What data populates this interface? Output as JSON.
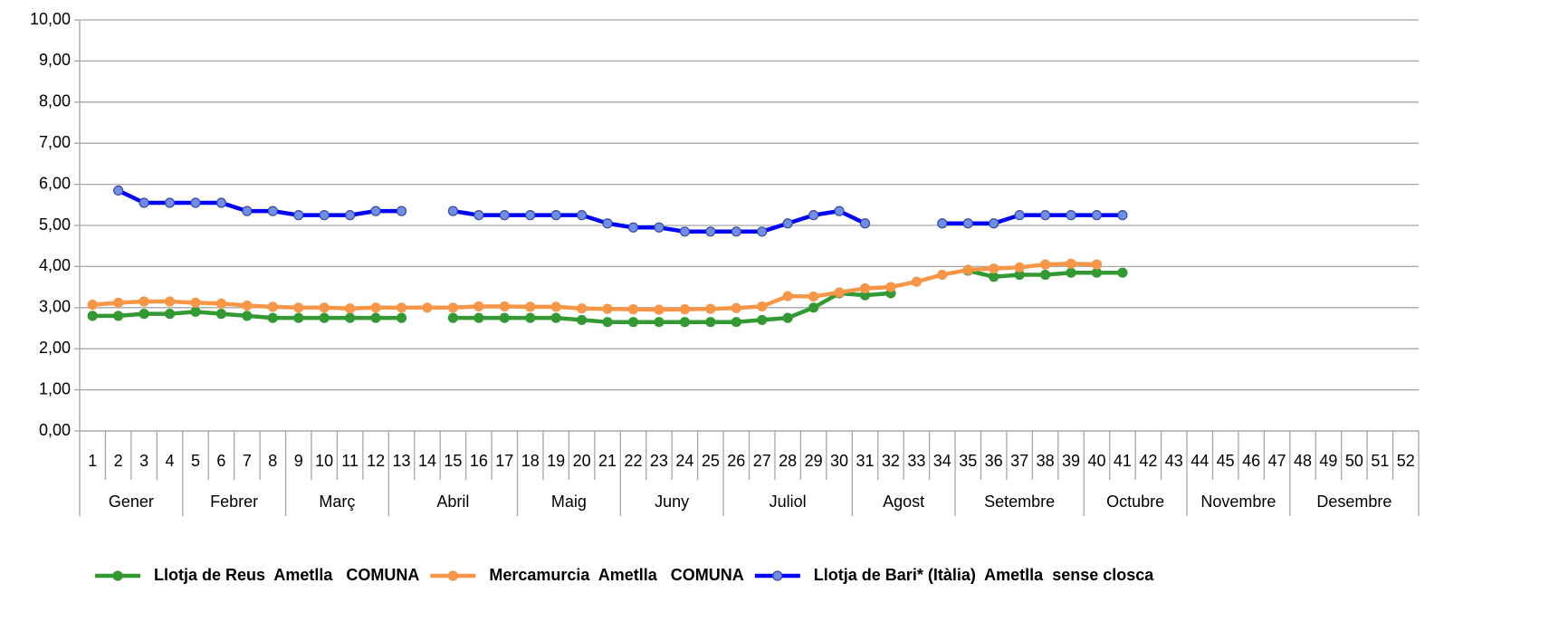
{
  "chart_data": {
    "type": "line",
    "categories": [
      "1",
      "2",
      "3",
      "4",
      "5",
      "6",
      "7",
      "8",
      "9",
      "10",
      "11",
      "12",
      "13",
      "14",
      "15",
      "16",
      "17",
      "18",
      "19",
      "20",
      "21",
      "22",
      "23",
      "24",
      "25",
      "26",
      "27",
      "28",
      "29",
      "30",
      "31",
      "32",
      "33",
      "34",
      "35",
      "36",
      "37",
      "38",
      "39",
      "40",
      "41",
      "42",
      "43",
      "44",
      "45",
      "46",
      "47",
      "48",
      "49",
      "50",
      "51",
      "52"
    ],
    "groups": [
      {
        "label": "Gener",
        "span": 4
      },
      {
        "label": "Febrer",
        "span": 4
      },
      {
        "label": "Març",
        "span": 4
      },
      {
        "label": "Abril",
        "span": 5
      },
      {
        "label": "Maig",
        "span": 4
      },
      {
        "label": "Juny",
        "span": 4
      },
      {
        "label": "Juliol",
        "span": 5
      },
      {
        "label": "Agost",
        "span": 4
      },
      {
        "label": "Setembre",
        "span": 5
      },
      {
        "label": "Octubre",
        "span": 4
      },
      {
        "label": "Novembre",
        "span": 4
      },
      {
        "label": "Desembre",
        "span": 5
      }
    ],
    "ylim": [
      0,
      10
    ],
    "yticks": [
      {
        "value": 0,
        "label": "0,00"
      },
      {
        "value": 1,
        "label": "1,00"
      },
      {
        "value": 2,
        "label": "2,00"
      },
      {
        "value": 3,
        "label": "3,00"
      },
      {
        "value": 4,
        "label": "4,00"
      },
      {
        "value": 5,
        "label": "5,00"
      },
      {
        "value": 6,
        "label": "6,00"
      },
      {
        "value": 7,
        "label": "7,00"
      },
      {
        "value": 8,
        "label": "8,00"
      },
      {
        "value": 9,
        "label": "9,00"
      },
      {
        "value": 10,
        "label": "10,00"
      }
    ],
    "grid": true,
    "legend": "bottom",
    "series": [
      {
        "name": "Llotja de Reus  Ametlla   COMUNA",
        "color": "#339933",
        "marker_color": "#339933",
        "values": [
          2.8,
          2.8,
          2.85,
          2.85,
          2.9,
          2.85,
          2.8,
          2.75,
          2.75,
          2.75,
          2.75,
          2.75,
          2.75,
          null,
          2.75,
          2.75,
          2.75,
          2.75,
          2.75,
          2.7,
          2.65,
          2.65,
          2.65,
          2.65,
          2.65,
          2.65,
          2.7,
          2.75,
          3.0,
          3.35,
          3.3,
          3.35,
          null,
          null,
          3.9,
          3.75,
          3.8,
          3.8,
          3.85,
          3.85,
          3.85,
          null,
          null,
          null,
          null,
          null,
          null,
          null,
          null,
          null,
          null,
          null
        ]
      },
      {
        "name": "Mercamurcia  Ametlla   COMUNA",
        "color": "#f79646",
        "marker_color": "#f79646",
        "values": [
          3.07,
          3.12,
          3.15,
          3.15,
          3.12,
          3.1,
          3.05,
          3.02,
          3.0,
          3.0,
          2.98,
          3.0,
          3.0,
          3.0,
          3.0,
          3.03,
          3.03,
          3.02,
          3.02,
          2.98,
          2.97,
          2.96,
          2.95,
          2.96,
          2.97,
          2.99,
          3.03,
          3.28,
          3.27,
          3.37,
          3.47,
          3.5,
          3.63,
          3.8,
          3.92,
          3.95,
          3.98,
          4.05,
          4.07,
          4.05,
          null,
          null,
          null,
          null,
          null,
          null,
          null,
          null,
          null,
          null,
          null,
          null
        ]
      },
      {
        "name": "Llotja de Bari* (Itàlia)  Ametlla  sense closca",
        "color": "#0000ff",
        "marker_color": "#6f8fe6",
        "values": [
          null,
          5.85,
          5.55,
          5.55,
          5.55,
          5.55,
          5.35,
          5.35,
          5.25,
          5.25,
          5.25,
          5.35,
          5.35,
          null,
          5.35,
          5.25,
          5.25,
          5.25,
          5.25,
          5.25,
          5.05,
          4.95,
          4.95,
          4.85,
          4.85,
          4.85,
          4.85,
          5.05,
          5.25,
          5.35,
          5.05,
          null,
          null,
          5.05,
          5.05,
          5.05,
          5.25,
          5.25,
          5.25,
          5.25,
          5.25,
          null,
          null,
          null,
          null,
          null,
          null,
          null,
          null,
          null,
          null,
          null
        ]
      }
    ]
  }
}
